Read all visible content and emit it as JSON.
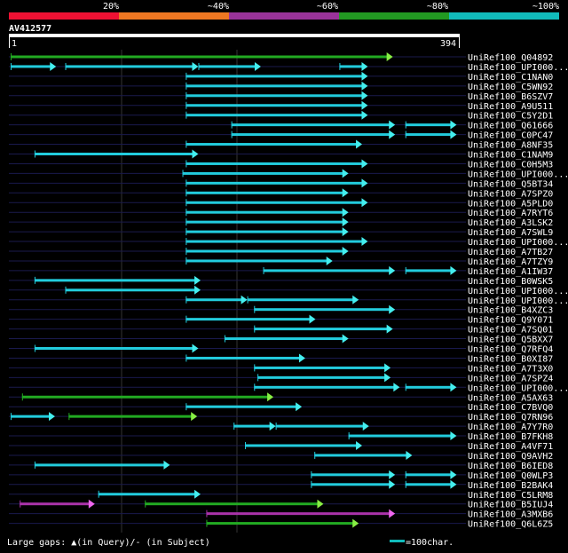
{
  "colors": {
    "background": "#000000",
    "grid": "#1a1a4d",
    "grid_vertical": "#333333",
    "query_bar": "#ffffff",
    "scale": [
      "#ee1133",
      "#ee7722",
      "#993399",
      "#229922",
      "#11bbbb"
    ]
  },
  "scale": {
    "labels": [
      "20%",
      "~40%",
      "~60%",
      "~80%",
      "~100%"
    ]
  },
  "query": {
    "id": "AV412577",
    "start_label": "1",
    "end_label": "394",
    "length": 394
  },
  "hits": [
    {
      "name": "UniRef100_Q04892",
      "segs": [
        [
          0,
          336,
          "green"
        ]
      ]
    },
    {
      "name": "UniRef100_UPI000...",
      "segs": [
        [
          0,
          40,
          "cyan"
        ],
        [
          48,
          165,
          "cyan"
        ],
        [
          165,
          220,
          "cyan"
        ],
        [
          289,
          314,
          "cyan"
        ]
      ]
    },
    {
      "name": "UniRef100_C1NAN0",
      "segs": [
        [
          154,
          314,
          "cyan"
        ]
      ]
    },
    {
      "name": "UniRef100_C5WN92",
      "segs": [
        [
          154,
          314,
          "cyan"
        ]
      ]
    },
    {
      "name": "UniRef100_B6SZV7",
      "segs": [
        [
          154,
          314,
          "cyan"
        ]
      ]
    },
    {
      "name": "UniRef100_A9U511",
      "segs": [
        [
          154,
          314,
          "cyan"
        ]
      ]
    },
    {
      "name": "UniRef100_C5Y2D1",
      "segs": [
        [
          154,
          314,
          "cyan"
        ]
      ]
    },
    {
      "name": "UniRef100_Q61666",
      "segs": [
        [
          194,
          338,
          "cyan"
        ],
        [
          347,
          392,
          "cyan"
        ]
      ]
    },
    {
      "name": "UniRef100_C0PC47",
      "segs": [
        [
          194,
          338,
          "cyan"
        ],
        [
          347,
          392,
          "cyan"
        ]
      ]
    },
    {
      "name": "UniRef100_A8NF35",
      "segs": [
        [
          154,
          309,
          "cyan"
        ]
      ]
    },
    {
      "name": "UniRef100_C1NAM9",
      "segs": [
        [
          21,
          165,
          "cyan"
        ]
      ]
    },
    {
      "name": "UniRef100_C0H5M3",
      "segs": [
        [
          154,
          314,
          "cyan"
        ]
      ]
    },
    {
      "name": "UniRef100_UPI000...",
      "segs": [
        [
          151,
          297,
          "cyan"
        ]
      ]
    },
    {
      "name": "UniRef100_Q5BT34",
      "segs": [
        [
          154,
          314,
          "cyan"
        ]
      ]
    },
    {
      "name": "UniRef100_A7SPZ0",
      "segs": [
        [
          154,
          297,
          "cyan"
        ]
      ]
    },
    {
      "name": "UniRef100_A5PLD0",
      "segs": [
        [
          154,
          314,
          "cyan"
        ]
      ]
    },
    {
      "name": "UniRef100_A7RYT6",
      "segs": [
        [
          154,
          297,
          "cyan"
        ]
      ]
    },
    {
      "name": "UniRef100_A3LSK2",
      "segs": [
        [
          154,
          297,
          "cyan"
        ]
      ]
    },
    {
      "name": "UniRef100_A7SWL9",
      "segs": [
        [
          154,
          297,
          "cyan"
        ]
      ]
    },
    {
      "name": "UniRef100_UPI000...",
      "segs": [
        [
          154,
          314,
          "cyan"
        ]
      ]
    },
    {
      "name": "UniRef100_A7TB27",
      "segs": [
        [
          154,
          297,
          "cyan"
        ]
      ]
    },
    {
      "name": "UniRef100_A7TZY9",
      "segs": [
        [
          154,
          283,
          "cyan"
        ]
      ]
    },
    {
      "name": "UniRef100_A1IW37",
      "segs": [
        [
          222,
          338,
          "cyan"
        ],
        [
          347,
          392,
          "cyan"
        ]
      ]
    },
    {
      "name": "UniRef100_B0WSK5",
      "segs": [
        [
          21,
          167,
          "cyan"
        ]
      ]
    },
    {
      "name": "UniRef100_UPI000...",
      "segs": [
        [
          48,
          167,
          "cyan"
        ]
      ]
    },
    {
      "name": "UniRef100_UPI000...",
      "segs": [
        [
          154,
          208,
          "cyan"
        ],
        [
          208,
          306,
          "cyan"
        ]
      ]
    },
    {
      "name": "UniRef100_B4XZC3",
      "segs": [
        [
          214,
          338,
          "cyan"
        ]
      ]
    },
    {
      "name": "UniRef100_Q9Y071",
      "segs": [
        [
          154,
          268,
          "cyan"
        ]
      ]
    },
    {
      "name": "UniRef100_A7SQ01",
      "segs": [
        [
          214,
          336,
          "cyan"
        ]
      ]
    },
    {
      "name": "UniRef100_Q5BXX7",
      "segs": [
        [
          188,
          297,
          "cyan"
        ]
      ]
    },
    {
      "name": "UniRef100_Q7RFQ4",
      "segs": [
        [
          21,
          165,
          "cyan"
        ]
      ]
    },
    {
      "name": "UniRef100_B0XI87",
      "segs": [
        [
          154,
          259,
          "cyan"
        ]
      ]
    },
    {
      "name": "UniRef100_A7T3X0",
      "segs": [
        [
          214,
          334,
          "cyan"
        ]
      ]
    },
    {
      "name": "UniRef100_A7SPZ4",
      "segs": [
        [
          217,
          334,
          "cyan"
        ]
      ]
    },
    {
      "name": "UniRef100_UPI000...",
      "segs": [
        [
          214,
          342,
          "cyan"
        ],
        [
          347,
          392,
          "cyan"
        ]
      ]
    },
    {
      "name": "UniRef100_A5AX63",
      "segs": [
        [
          10,
          231,
          "green"
        ]
      ]
    },
    {
      "name": "UniRef100_C7BVQ0",
      "segs": [
        [
          154,
          256,
          "cyan"
        ]
      ]
    },
    {
      "name": "UniRef100_Q7RN96",
      "segs": [
        [
          0,
          39,
          "cyan"
        ],
        [
          51,
          164,
          "green"
        ]
      ]
    },
    {
      "name": "UniRef100_A7Y7R0",
      "segs": [
        [
          196,
          233,
          "cyan"
        ],
        [
          233,
          315,
          "cyan"
        ]
      ]
    },
    {
      "name": "UniRef100_B7FKH8",
      "segs": [
        [
          297,
          392,
          "cyan"
        ]
      ]
    },
    {
      "name": "UniRef100_A4VF71",
      "segs": [
        [
          206,
          309,
          "cyan"
        ]
      ]
    },
    {
      "name": "UniRef100_Q9AVH2",
      "segs": [
        [
          267,
          353,
          "cyan"
        ]
      ]
    },
    {
      "name": "UniRef100_B6IED8",
      "segs": [
        [
          21,
          140,
          "cyan"
        ]
      ]
    },
    {
      "name": "UniRef100_Q0WLP3",
      "segs": [
        [
          264,
          338,
          "cyan"
        ],
        [
          347,
          392,
          "cyan"
        ]
      ]
    },
    {
      "name": "UniRef100_B2BAK4",
      "segs": [
        [
          264,
          338,
          "cyan"
        ],
        [
          347,
          392,
          "cyan"
        ]
      ]
    },
    {
      "name": "UniRef100_C5LRM8",
      "segs": [
        [
          77,
          167,
          "cyan"
        ]
      ]
    },
    {
      "name": "UniRef100_B5IUJ4",
      "segs": [
        [
          8,
          74,
          "purple"
        ],
        [
          118,
          275,
          "green"
        ]
      ]
    },
    {
      "name": "UniRef100_A3MXB6",
      "segs": [
        [
          172,
          338,
          "purple"
        ]
      ]
    },
    {
      "name": "UniRef100_Q6L6Z5",
      "segs": [
        [
          172,
          306,
          "green"
        ]
      ]
    }
  ],
  "footer": {
    "gaps_label": "Large gaps: ▲(in Query)/- (in Subject)",
    "legend_label": "=100char."
  }
}
